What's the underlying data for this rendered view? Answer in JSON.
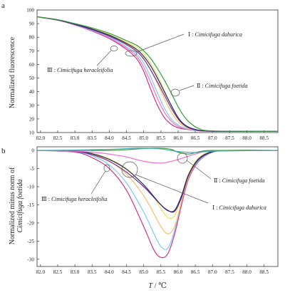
{
  "figure": {
    "x_axis_title_italic": "T",
    "x_axis_title_rest": " / ℃"
  },
  "chart_data": [
    {
      "type": "line",
      "panel_label": "a",
      "xlabel": "",
      "ylabel": "Normalized fluorescence",
      "xlim": [
        81.9,
        88.9
      ],
      "ylim": [
        10,
        100
      ],
      "x_ticks": [
        "82.0",
        "82.5",
        "83.0",
        "83.5",
        "84.0",
        "84.5",
        "85.0",
        "85.5",
        "86.0",
        "86.5",
        "87.0",
        "87.5",
        "88.0",
        "88.5"
      ],
      "y_ticks": [
        "10",
        "20",
        "30",
        "40",
        "50",
        "60",
        "70",
        "80",
        "90",
        "100"
      ],
      "grid": false,
      "annotations": [
        {
          "numeral": "Ⅰ",
          "species": "Cimicifuga dahurica"
        },
        {
          "numeral": "Ⅱ",
          "species": "Cimicifuga foetida"
        },
        {
          "numeral": "Ⅲ",
          "species": "Cimicifuga heracleifolia"
        }
      ],
      "series": [
        {
          "color": "#d2338a",
          "x": [
            81.9,
            82.5,
            83.0,
            83.5,
            84.0,
            84.5,
            84.8,
            85.0,
            85.2,
            85.4,
            85.6,
            85.8,
            86.0,
            86.2,
            86.5,
            87.0,
            88.9
          ],
          "y": [
            95,
            92.5,
            89,
            84.5,
            79,
            71,
            64,
            55,
            42,
            30,
            21,
            16,
            13.5,
            12.5,
            11.5,
            11,
            11
          ]
        },
        {
          "color": "#f06fc9",
          "x": [
            81.9,
            82.5,
            83.0,
            83.5,
            84.0,
            84.5,
            84.8,
            85.0,
            85.2,
            85.4,
            85.6,
            85.8,
            86.0,
            86.2,
            86.5,
            87.0,
            88.9
          ],
          "y": [
            95,
            92.5,
            89,
            84.8,
            79.5,
            72,
            66,
            58,
            47,
            35,
            25,
            18.5,
            14.5,
            12.8,
            11.5,
            11,
            11
          ]
        },
        {
          "color": "#7fc8f0",
          "x": [
            81.9,
            82.5,
            83.0,
            83.5,
            84.0,
            84.5,
            84.8,
            85.0,
            85.2,
            85.4,
            85.6,
            85.8,
            86.0,
            86.2,
            86.5,
            87.0,
            88.9
          ],
          "y": [
            95,
            92.6,
            89.2,
            85.2,
            80.2,
            73,
            67.5,
            61,
            51,
            39,
            28,
            20,
            15.5,
            13.2,
            11.8,
            11,
            11
          ]
        },
        {
          "color": "#f5c26a",
          "x": [
            81.9,
            82.5,
            83.0,
            83.5,
            84.0,
            84.5,
            84.8,
            85.0,
            85.2,
            85.4,
            85.6,
            85.8,
            86.0,
            86.2,
            86.5,
            87.0,
            88.9
          ],
          "y": [
            95,
            92.7,
            89.5,
            85.8,
            81.2,
            75,
            70,
            64.5,
            56,
            46,
            35,
            25,
            18,
            14,
            12,
            11,
            11
          ]
        },
        {
          "color": "#e9e35a",
          "x": [
            81.9,
            82.5,
            83.0,
            83.5,
            84.0,
            84.5,
            84.8,
            85.0,
            85.2,
            85.4,
            85.6,
            85.8,
            86.0,
            86.2,
            86.5,
            87.0,
            88.9
          ],
          "y": [
            95,
            92.8,
            89.8,
            86.3,
            82,
            76.5,
            72.5,
            68,
            61,
            52,
            41,
            30,
            20.5,
            15,
            12.2,
            11,
            11
          ]
        },
        {
          "color": "#7a2f8a",
          "x": [
            81.9,
            82.5,
            83.0,
            83.5,
            84.0,
            84.5,
            84.8,
            85.0,
            85.2,
            85.4,
            85.6,
            85.8,
            86.0,
            86.2,
            86.5,
            87.0,
            88.9
          ],
          "y": [
            95,
            92.6,
            89.3,
            85.5,
            80.8,
            74.5,
            69.5,
            64,
            56,
            47,
            37.5,
            28,
            20,
            15,
            12,
            11,
            11
          ]
        },
        {
          "color": "#232a6e",
          "x": [
            81.9,
            82.5,
            83.0,
            83.5,
            84.0,
            84.5,
            84.8,
            85.0,
            85.2,
            85.4,
            85.6,
            85.8,
            86.0,
            86.2,
            86.5,
            87.0,
            88.9
          ],
          "y": [
            95,
            92.7,
            89.6,
            86,
            81.5,
            75.5,
            71,
            66,
            59,
            50,
            40,
            30,
            21,
            15.5,
            12.3,
            11,
            11
          ]
        },
        {
          "color": "#3b9a3e",
          "x": [
            81.9,
            82.5,
            83.0,
            83.5,
            84.0,
            84.5,
            84.8,
            85.0,
            85.2,
            85.4,
            85.6,
            85.8,
            86.0,
            86.2,
            86.4,
            86.6,
            87.0,
            88.9
          ],
          "y": [
            95,
            92.9,
            90,
            86.8,
            82.8,
            77.5,
            74,
            70,
            64.5,
            57,
            48.5,
            39,
            29,
            21,
            16,
            13,
            11.2,
            11
          ]
        }
      ]
    },
    {
      "type": "line",
      "panel_label": "b",
      "xlabel": "",
      "ylabel_line1": "Normalized minus norm of",
      "ylabel_line2": "Cimicifuga foetida",
      "xlim": [
        81.9,
        88.9
      ],
      "ylim": [
        -32,
        1
      ],
      "x_ticks": [
        "82.0",
        "82.5",
        "83.0",
        "83.5",
        "84.0",
        "84.5",
        "85.0",
        "85.5",
        "86.0",
        "86.5",
        "87.0",
        "87.5",
        "88.0",
        "88.5"
      ],
      "y_ticks": [
        "0",
        "-5",
        "-10",
        "-15",
        "-20",
        "-25",
        "-30"
      ],
      "grid": false,
      "annotations": [
        {
          "numeral": "Ⅰ",
          "species": "Cimicifuga dahurica"
        },
        {
          "numeral": "Ⅱ",
          "species": "Cimicifuga foetida"
        },
        {
          "numeral": "Ⅲ",
          "species": "Cimicifuga heracleifolia"
        }
      ],
      "series": [
        {
          "color": "#d2338a",
          "x": [
            81.9,
            83.0,
            83.5,
            84.0,
            84.5,
            85.0,
            85.3,
            85.5,
            85.7,
            85.9,
            86.1,
            86.3,
            86.6,
            87.0,
            87.5,
            88.9
          ],
          "y": [
            0,
            -0.5,
            -2,
            -5,
            -11,
            -21,
            -27.5,
            -29.5,
            -28.5,
            -23,
            -15,
            -8,
            -3,
            -0.5,
            0,
            0
          ]
        },
        {
          "color": "#7fc8f0",
          "x": [
            81.9,
            83.0,
            83.5,
            84.0,
            84.5,
            85.0,
            85.3,
            85.5,
            85.7,
            85.9,
            86.1,
            86.3,
            86.6,
            87.0,
            87.5,
            88.9
          ],
          "y": [
            0,
            -0.4,
            -1.5,
            -4,
            -9,
            -17,
            -23,
            -26.5,
            -27,
            -22,
            -14,
            -7.5,
            -2.8,
            -0.5,
            0,
            0
          ]
        },
        {
          "color": "#f5c26a",
          "x": [
            81.9,
            83.0,
            83.5,
            84.0,
            84.5,
            85.0,
            85.3,
            85.5,
            85.7,
            85.9,
            86.1,
            86.3,
            86.6,
            87.0,
            87.5,
            88.9
          ],
          "y": [
            0,
            -0.3,
            -1,
            -3,
            -6.5,
            -12.5,
            -17.5,
            -21,
            -23,
            -21,
            -14,
            -7.5,
            -2.5,
            -0.4,
            0,
            0
          ]
        },
        {
          "color": "#e9e35a",
          "x": [
            81.9,
            83.0,
            83.5,
            84.0,
            84.5,
            85.0,
            85.3,
            85.5,
            85.7,
            85.9,
            86.1,
            86.3,
            86.6,
            87.0,
            87.5,
            88.9
          ],
          "y": [
            0,
            -0.2,
            -0.8,
            -2.3,
            -5,
            -9.5,
            -13,
            -16,
            -18.5,
            -18,
            -12.5,
            -6.5,
            -2,
            -0.3,
            0,
            0
          ]
        },
        {
          "color": "#7a2f8a",
          "x": [
            81.9,
            83.0,
            83.5,
            84.0,
            84.5,
            85.0,
            85.3,
            85.5,
            85.7,
            85.9,
            86.1,
            86.3,
            86.6,
            87.0,
            87.5,
            88.9
          ],
          "y": [
            0,
            -0.3,
            -1.2,
            -3,
            -6,
            -10,
            -13,
            -15,
            -16.5,
            -16.8,
            -13,
            -7,
            -2.5,
            -0.4,
            0,
            0
          ]
        },
        {
          "color": "#232a6e",
          "x": [
            81.9,
            83.0,
            83.5,
            84.0,
            84.5,
            85.0,
            85.3,
            85.5,
            85.7,
            85.9,
            86.1,
            86.3,
            86.6,
            87.0,
            87.5,
            88.9
          ],
          "y": [
            0,
            -0.2,
            -0.9,
            -2.5,
            -5.2,
            -9.5,
            -12.8,
            -15,
            -16.6,
            -16.5,
            -12.5,
            -6.8,
            -2.3,
            -0.3,
            0,
            0
          ]
        },
        {
          "color": "#f06fc9",
          "x": [
            81.9,
            83.0,
            83.5,
            84.0,
            84.5,
            85.0,
            85.5,
            86.0,
            86.5,
            87.0,
            88.9
          ],
          "y": [
            0,
            -0.2,
            -0.5,
            -1,
            -1.8,
            -3,
            -3.5,
            -2.5,
            -1,
            -0.2,
            0
          ]
        },
        {
          "color": "#3b9a3e",
          "x": [
            81.9,
            83.0,
            83.5,
            84.0,
            84.5,
            85.0,
            85.5,
            85.8,
            86.0,
            86.3,
            86.6,
            87.0,
            88.9
          ],
          "y": [
            0,
            0,
            0,
            0,
            0.2,
            0.5,
            0.6,
            0.3,
            -0.5,
            -1,
            -0.4,
            0,
            0
          ]
        },
        {
          "color": "#4aa8b0",
          "x": [
            81.9,
            83.0,
            84.0,
            84.5,
            85.0,
            85.5,
            86.0,
            86.5,
            87.0,
            88.9
          ],
          "y": [
            0,
            0.1,
            0.3,
            0.5,
            0.6,
            0.4,
            -0.3,
            -0.6,
            -0.2,
            0
          ]
        }
      ]
    }
  ]
}
